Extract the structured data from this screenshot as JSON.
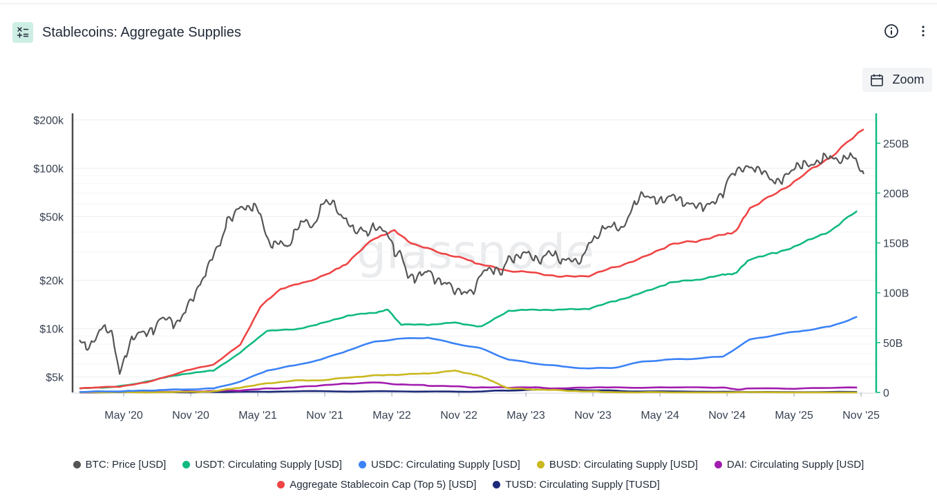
{
  "header": {
    "title": "Stablecoins: Aggregate Supplies",
    "icon": "calculator-icon"
  },
  "toolbar": {
    "zoom_label": "Zoom",
    "info_icon": "info-icon",
    "more_icon": "more-vertical-icon"
  },
  "watermark": "glassnode",
  "chart_data": {
    "type": "line",
    "title": "Stablecoins: Aggregate Supplies",
    "x_ticks": [
      "May '20",
      "Nov '20",
      "May '21",
      "Nov '21",
      "May '22",
      "Nov '22",
      "May '23",
      "Nov '23",
      "May '24",
      "Nov '24",
      "May '25",
      "Nov '25"
    ],
    "x_range": [
      2020.0,
      2025.85
    ],
    "y_left": {
      "scale": "log",
      "range": [
        4000,
        220000
      ],
      "ticks": [
        5000,
        10000,
        20000,
        50000,
        100000,
        200000
      ],
      "tick_labels": [
        "$5k",
        "$10k",
        "$20k",
        "$50k",
        "$100k",
        "$200k"
      ]
    },
    "y_right": {
      "scale": "linear",
      "range": [
        0,
        280
      ],
      "ticks": [
        0,
        50,
        100,
        150,
        200,
        250
      ],
      "tick_labels": [
        "0",
        "50B",
        "100B",
        "150B",
        "200B",
        "250B"
      ]
    },
    "series": [
      {
        "name": "BTC: Price [USD]",
        "axis": "left",
        "color": "#555555",
        "x": [
          2020.0,
          2020.05,
          2020.1,
          2020.15,
          2020.2,
          2020.25,
          2020.3,
          2020.35,
          2020.4,
          2020.45,
          2020.5,
          2020.55,
          2020.6,
          2020.65,
          2020.7,
          2020.75,
          2020.8,
          2020.85,
          2020.9,
          2020.95,
          2021.0,
          2021.05,
          2021.1,
          2021.15,
          2021.2,
          2021.25,
          2021.3,
          2021.35,
          2021.4,
          2021.45,
          2021.5,
          2021.55,
          2021.6,
          2021.65,
          2021.7,
          2021.75,
          2021.8,
          2021.85,
          2021.9,
          2021.95,
          2022.0,
          2022.05,
          2022.1,
          2022.15,
          2022.2,
          2022.25,
          2022.3,
          2022.35,
          2022.4,
          2022.45,
          2022.5,
          2022.55,
          2022.6,
          2022.65,
          2022.7,
          2022.75,
          2022.8,
          2022.85,
          2022.9,
          2022.95,
          2023.0,
          2023.05,
          2023.1,
          2023.15,
          2023.2,
          2023.25,
          2023.3,
          2023.35,
          2023.4,
          2023.45,
          2023.5,
          2023.55,
          2023.6,
          2023.65,
          2023.7,
          2023.75,
          2023.8,
          2023.85,
          2023.9,
          2023.95,
          2024.0,
          2024.05,
          2024.1,
          2024.15,
          2024.2,
          2024.25,
          2024.3,
          2024.35,
          2024.4,
          2024.45,
          2024.5,
          2024.55,
          2024.6,
          2024.65,
          2024.7,
          2024.75,
          2024.8,
          2024.85,
          2024.9,
          2024.95,
          2025.0,
          2025.05,
          2025.1,
          2025.15,
          2025.2,
          2025.25,
          2025.3,
          2025.35,
          2025.4,
          2025.45,
          2025.5,
          2025.55,
          2025.6,
          2025.65,
          2025.7,
          2025.75,
          2025.8,
          2025.85
        ],
        "values": [
          8500,
          7700,
          8200,
          9800,
          10200,
          9000,
          5200,
          7000,
          8900,
          9500,
          9300,
          9700,
          11500,
          11600,
          10600,
          11200,
          13500,
          15500,
          19000,
          23000,
          29000,
          33500,
          47000,
          50000,
          58000,
          56000,
          58000,
          52000,
          36000,
          33000,
          35000,
          32000,
          39000,
          46000,
          47000,
          43000,
          58000,
          63000,
          61000,
          50000,
          47000,
          41000,
          42000,
          39000,
          44000,
          42000,
          39000,
          30000,
          29500,
          21000,
          20500,
          22000,
          23000,
          20000,
          19500,
          19200,
          16800,
          17000,
          16800,
          17200,
          22500,
          23500,
          23000,
          22000,
          28000,
          27000,
          29000,
          30000,
          27000,
          26500,
          30500,
          29000,
          26000,
          27500,
          26500,
          27000,
          34500,
          37000,
          42000,
          43500,
          44000,
          42000,
          51000,
          62000,
          70000,
          66000,
          63000,
          63000,
          67000,
          66000,
          61000,
          60000,
          58000,
          57000,
          60000,
          62000,
          69000,
          90000,
          95000,
          98000,
          102000,
          98000,
          95000,
          86000,
          82000,
          85000,
          95000,
          104000,
          106000,
          104000,
          109000,
          117000,
          118000,
          113000,
          114000,
          122000,
          110000,
          92000
        ]
      },
      {
        "name": "USDT: Circulating Supply [USD]",
        "axis": "right",
        "color": "#10b981",
        "x": [
          2020.0,
          2020.2,
          2020.4,
          2020.6,
          2020.8,
          2021.0,
          2021.2,
          2021.4,
          2021.6,
          2021.8,
          2022.0,
          2022.2,
          2022.3,
          2022.4,
          2022.6,
          2022.8,
          2023.0,
          2023.2,
          2023.4,
          2023.6,
          2023.8,
          2024.0,
          2024.2,
          2024.4,
          2024.6,
          2024.8,
          2024.9,
          2025.0,
          2025.2,
          2025.4,
          2025.6,
          2025.8
        ],
        "values": [
          4,
          5,
          8,
          14,
          19,
          22,
          40,
          62,
          63,
          69,
          77,
          80,
          83,
          68,
          68,
          70,
          66,
          82,
          83,
          83,
          84,
          92,
          100,
          110,
          113,
          118,
          120,
          134,
          140,
          150,
          162,
          182
        ]
      },
      {
        "name": "USDC: Circulating Supply [USD]",
        "axis": "right",
        "color": "#3b82f6",
        "x": [
          2020.0,
          2020.2,
          2020.4,
          2020.6,
          2020.8,
          2021.0,
          2021.2,
          2021.4,
          2021.6,
          2021.8,
          2022.0,
          2022.2,
          2022.4,
          2022.6,
          2022.8,
          2023.0,
          2023.2,
          2023.4,
          2023.6,
          2023.8,
          2024.0,
          2024.2,
          2024.4,
          2024.6,
          2024.8,
          2025.0,
          2025.2,
          2025.4,
          2025.6,
          2025.8
        ],
        "values": [
          0.5,
          1,
          1.5,
          2.5,
          3,
          4,
          11,
          22,
          27,
          33,
          42,
          51,
          54,
          55,
          49,
          44,
          33,
          29,
          26,
          24,
          25,
          31,
          33,
          34,
          36,
          53,
          58,
          62,
          66,
          76
        ]
      },
      {
        "name": "BUSD: Circulating Supply [USD]",
        "axis": "right",
        "color": "#c9b81e",
        "x": [
          2020.0,
          2020.5,
          2020.8,
          2021.0,
          2021.2,
          2021.4,
          2021.6,
          2021.8,
          2022.0,
          2022.2,
          2022.4,
          2022.6,
          2022.8,
          2022.9,
          2023.0,
          2023.1,
          2023.2,
          2023.4,
          2023.6,
          2023.8,
          2024.0,
          2024.5,
          2025.0,
          2025.8
        ],
        "values": [
          0.1,
          0.2,
          0.5,
          1,
          5,
          9,
          12,
          12,
          15,
          17,
          18,
          19,
          22,
          19,
          16,
          10,
          4,
          3,
          2,
          1,
          0.1,
          0,
          0,
          0
        ]
      },
      {
        "name": "DAI: Circulating Supply [USD]",
        "axis": "right",
        "color": "#a21caf",
        "x": [
          2020.0,
          2020.5,
          2020.8,
          2021.0,
          2021.2,
          2021.4,
          2021.6,
          2021.8,
          2022.0,
          2022.2,
          2022.4,
          2022.6,
          2022.8,
          2023.0,
          2023.2,
          2023.4,
          2023.6,
          2023.8,
          2024.0,
          2024.4,
          2024.8,
          2024.9,
          2025.0,
          2025.4,
          2025.8
        ],
        "values": [
          0.1,
          0.4,
          1,
          1.5,
          2,
          4,
          5,
          7,
          9,
          10,
          8,
          7,
          6,
          5,
          5,
          5,
          4,
          5,
          5,
          5,
          5,
          3,
          4,
          4,
          5
        ]
      },
      {
        "name": "Aggregate Stablecoin Cap (Top 5) [USD]",
        "axis": "right",
        "color": "#ef4444",
        "x": [
          2020.0,
          2020.3,
          2020.5,
          2020.8,
          2021.0,
          2021.2,
          2021.35,
          2021.5,
          2021.7,
          2021.9,
          2022.0,
          2022.2,
          2022.35,
          2022.5,
          2022.7,
          2022.9,
          2023.0,
          2023.2,
          2023.4,
          2023.6,
          2023.8,
          2024.0,
          2024.2,
          2024.4,
          2024.6,
          2024.8,
          2024.9,
          2025.0,
          2025.2,
          2025.4,
          2025.6,
          2025.85
        ],
        "values": [
          4,
          6,
          10,
          22,
          28,
          48,
          86,
          104,
          111,
          122,
          130,
          155,
          162,
          148,
          140,
          133,
          128,
          122,
          120,
          116,
          117,
          126,
          135,
          148,
          152,
          158,
          162,
          185,
          200,
          218,
          236,
          264
        ]
      },
      {
        "name": "TUSD: Circulating Supply [TUSD]",
        "axis": "right",
        "color": "#1e2a78",
        "x": [
          2020.0,
          2020.8,
          2021.0,
          2021.5,
          2022.0,
          2022.5,
          2023.0,
          2023.3,
          2023.6,
          2023.9,
          2024.2,
          2025.0,
          2025.8
        ],
        "values": [
          0.1,
          0.3,
          0.5,
          1,
          1.2,
          1,
          1,
          2.5,
          3,
          2,
          1,
          0.5,
          0.5
        ]
      }
    ]
  }
}
